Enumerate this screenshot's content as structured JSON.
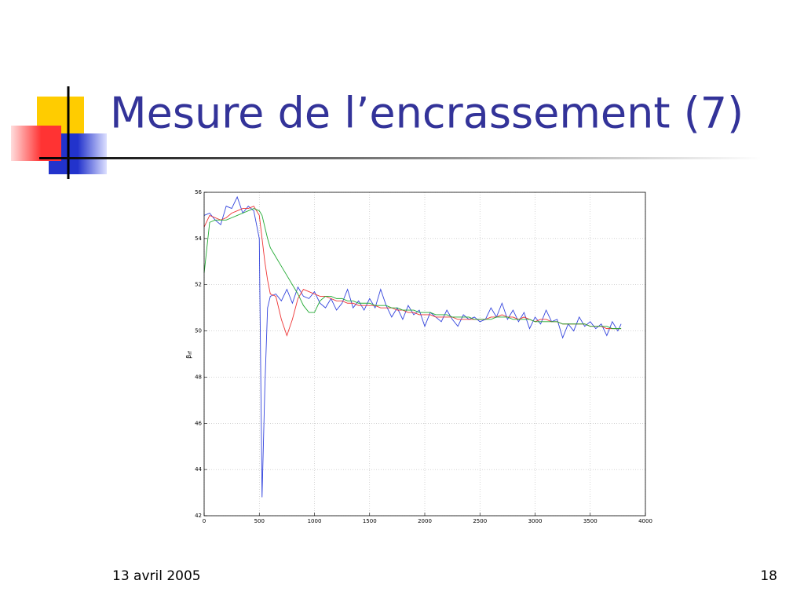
{
  "slide": {
    "title": "Mesure de l’encrassement (7)",
    "date": "13 avril 2005",
    "page": "18"
  },
  "chart_data": {
    "type": "line",
    "ylabel": {
      "symbol": "β",
      "subscript": "rf"
    },
    "x": [
      0,
      50,
      100,
      150,
      200,
      250,
      300,
      350,
      400,
      450,
      500,
      525,
      550,
      575,
      600,
      650,
      700,
      750,
      800,
      850,
      900,
      950,
      1000,
      1050,
      1100,
      1150,
      1200,
      1250,
      1300,
      1350,
      1400,
      1450,
      1500,
      1550,
      1600,
      1650,
      1700,
      1750,
      1800,
      1850,
      1900,
      1950,
      2000,
      2050,
      2100,
      2150,
      2200,
      2250,
      2300,
      2350,
      2400,
      2450,
      2500,
      2550,
      2600,
      2650,
      2700,
      2750,
      2800,
      2850,
      2900,
      2950,
      3000,
      3050,
      3100,
      3150,
      3200,
      3250,
      3300,
      3350,
      3400,
      3450,
      3500,
      3550,
      3600,
      3650,
      3700,
      3750,
      3780
    ],
    "series": [
      {
        "color": "#3344dd",
        "values": [
          55.0,
          55.1,
          54.8,
          54.6,
          55.4,
          55.3,
          55.8,
          55.1,
          55.4,
          55.2,
          54.0,
          42.8,
          47.5,
          51.0,
          51.5,
          51.6,
          51.3,
          51.8,
          51.2,
          51.9,
          51.5,
          51.4,
          51.7,
          51.2,
          51.0,
          51.4,
          50.9,
          51.2,
          51.8,
          51.0,
          51.3,
          50.9,
          51.4,
          51.0,
          51.8,
          51.1,
          50.6,
          51.0,
          50.5,
          51.1,
          50.7,
          50.9,
          50.2,
          50.8,
          50.6,
          50.4,
          50.9,
          50.5,
          50.2,
          50.7,
          50.5,
          50.6,
          50.4,
          50.5,
          51.0,
          50.6,
          51.2,
          50.5,
          50.9,
          50.4,
          50.8,
          50.1,
          50.6,
          50.3,
          50.9,
          50.4,
          50.5,
          49.7,
          50.3,
          50.0,
          50.6,
          50.2,
          50.4,
          50.1,
          50.3,
          49.8,
          50.4,
          50.0,
          50.3
        ]
      },
      {
        "color": "#ee3333",
        "values": [
          54.5,
          55.0,
          54.9,
          54.8,
          54.9,
          55.1,
          55.2,
          55.3,
          55.3,
          55.4,
          55.0,
          54.0,
          53.0,
          52.2,
          51.6,
          51.5,
          50.5,
          49.8,
          50.5,
          51.4,
          51.8,
          51.7,
          51.6,
          51.5,
          51.5,
          51.4,
          51.3,
          51.3,
          51.2,
          51.2,
          51.1,
          51.1,
          51.1,
          51.1,
          51.0,
          51.0,
          51.0,
          50.9,
          50.9,
          50.8,
          50.8,
          50.7,
          50.7,
          50.7,
          50.6,
          50.6,
          50.6,
          50.6,
          50.5,
          50.5,
          50.5,
          50.5,
          50.5,
          50.5,
          50.6,
          50.6,
          50.7,
          50.6,
          50.6,
          50.5,
          50.6,
          50.5,
          50.4,
          50.5,
          50.5,
          50.4,
          50.4,
          50.3,
          50.3,
          50.3,
          50.3,
          50.3,
          50.2,
          50.2,
          50.2,
          50.1,
          50.1,
          50.1,
          50.1
        ]
      },
      {
        "color": "#22aa33",
        "values": [
          52.5,
          54.7,
          54.8,
          54.8,
          54.8,
          54.9,
          55.0,
          55.1,
          55.2,
          55.3,
          55.2,
          55.0,
          54.5,
          54.0,
          53.6,
          53.2,
          52.8,
          52.4,
          52.0,
          51.6,
          51.1,
          50.8,
          50.8,
          51.3,
          51.5,
          51.5,
          51.4,
          51.4,
          51.3,
          51.3,
          51.2,
          51.2,
          51.2,
          51.1,
          51.1,
          51.1,
          51.0,
          51.0,
          50.9,
          50.9,
          50.9,
          50.8,
          50.8,
          50.8,
          50.7,
          50.7,
          50.7,
          50.6,
          50.6,
          50.6,
          50.6,
          50.5,
          50.5,
          50.5,
          50.5,
          50.6,
          50.6,
          50.6,
          50.5,
          50.5,
          50.5,
          50.5,
          50.4,
          50.4,
          50.4,
          50.4,
          50.4,
          50.3,
          50.3,
          50.3,
          50.3,
          50.3,
          50.2,
          50.2,
          50.2,
          50.2,
          50.1,
          50.1,
          50.1
        ]
      }
    ],
    "xlim": [
      0,
      4000
    ],
    "xticks": [
      0,
      500,
      1000,
      1500,
      2000,
      2500,
      3000,
      3500,
      4000
    ],
    "ylim": [
      42,
      56
    ],
    "yticks": [
      42,
      44,
      46,
      48,
      50,
      52,
      54,
      56
    ],
    "grid": true
  }
}
